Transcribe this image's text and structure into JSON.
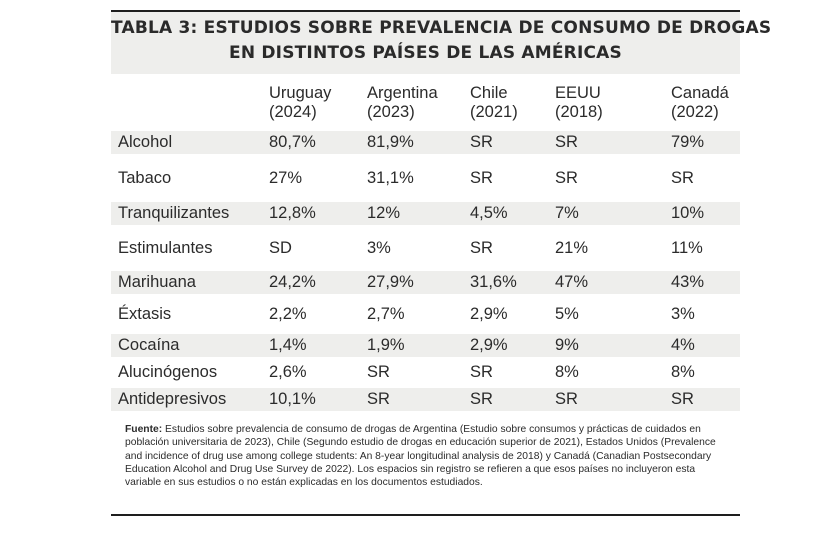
{
  "title": {
    "line1": "TABLA 3: ESTUDIOS SOBRE PREVALENCIA DE CONSUMO DE DROGAS",
    "line2": "EN DISTINTOS PAÍSES DE LAS AMÉRICAS"
  },
  "columns": [
    {
      "country": "Uruguay",
      "year": "(2024)"
    },
    {
      "country": "Argentina",
      "year": "(2023)"
    },
    {
      "country": "Chile",
      "year": "(2021)"
    },
    {
      "country": "EEUU",
      "year": "(2018)"
    },
    {
      "country": "Canadá",
      "year": "(2022)"
    }
  ],
  "rows": [
    {
      "label": "Alcohol",
      "values": [
        "80,7%",
        "81,9%",
        "SR",
        "SR",
        "79%"
      ]
    },
    {
      "label": "Tabaco",
      "values": [
        "27%",
        "31,1%",
        "SR",
        "SR",
        "SR"
      ]
    },
    {
      "label": "Tranquilizantes",
      "values": [
        "12,8%",
        "12%",
        "4,5%",
        "7%",
        "10%"
      ]
    },
    {
      "label": "Estimulantes",
      "values": [
        "SD",
        "3%",
        "SR",
        "21%",
        "11%"
      ]
    },
    {
      "label": "Marihuana",
      "values": [
        "24,2%",
        "27,9%",
        "31,6%",
        "47%",
        "43%"
      ]
    },
    {
      "label": "Éxtasis",
      "values": [
        "2,2%",
        "2,7%",
        "2,9%",
        "5%",
        "3%"
      ]
    },
    {
      "label": "Cocaína",
      "values": [
        "1,4%",
        "1,9%",
        "2,9%",
        "9%",
        "4%"
      ]
    },
    {
      "label": "Alucinógenos",
      "values": [
        "2,6%",
        "SR",
        "SR",
        "8%",
        "8%"
      ]
    },
    {
      "label": "Antidepresivos",
      "values": [
        "10,1%",
        "SR",
        "SR",
        "SR",
        "SR"
      ]
    }
  ],
  "footnote": {
    "label": "Fuente:",
    "text": " Estudios sobre prevalencia de consumo de drogas de Argentina (Estudio sobre consumos y prácticas de cuidados en población universitaria de 2023), Chile (Segundo estudio de drogas en educación superior de 2021), Estados Unidos (Prevalence and incidence of drug use among college students: An 8-year longitudinal analysis de 2018) y Canadá (Canadian Postsecondary Education Alcohol and Drug Use Survey de 2022). Los espacios sin registro se refieren a que esos países no incluyeron esta variable en sus estudios o no están explicadas en los documentos estudiados."
  },
  "colors": {
    "shade": "#eeeeec",
    "rule": "#1e1e1e",
    "text": "#2b2b2b"
  }
}
